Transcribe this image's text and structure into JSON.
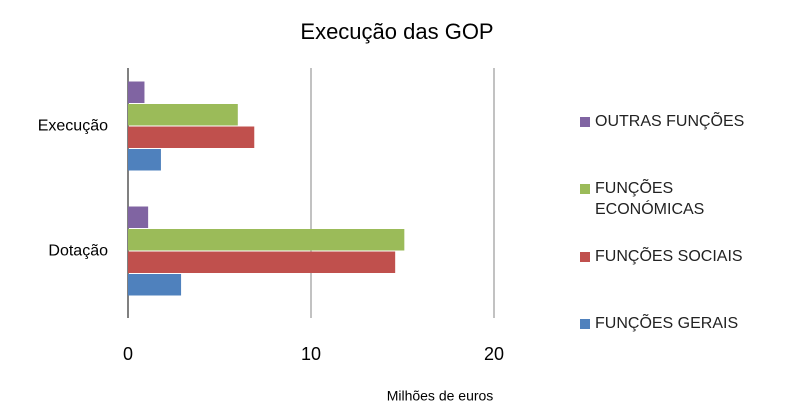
{
  "chart_data": {
    "type": "bar",
    "orientation": "horizontal",
    "title": "Execução das GOP",
    "x_label": "Milhões de euros",
    "categories": [
      "Execução",
      "Dotação"
    ],
    "series": [
      {
        "name": "FUNÇÕES GERAIS",
        "color": "#4f81bd",
        "values": [
          1.8,
          2.9
        ]
      },
      {
        "name": "FUNÇÕES SOCIAIS",
        "color": "#c0504d",
        "values": [
          6.9,
          14.6
        ]
      },
      {
        "name": "FUNÇÕES ECONÓMICAS",
        "color": "#9bbb59",
        "values": [
          6.0,
          15.1
        ]
      },
      {
        "name": "OUTRAS FUNÇÕES",
        "color": "#8064a2",
        "values": [
          0.9,
          1.1
        ]
      }
    ],
    "xlim": [
      0,
      20
    ],
    "xticks": [
      0,
      10,
      20
    ],
    "grid": true,
    "legend": "right"
  }
}
